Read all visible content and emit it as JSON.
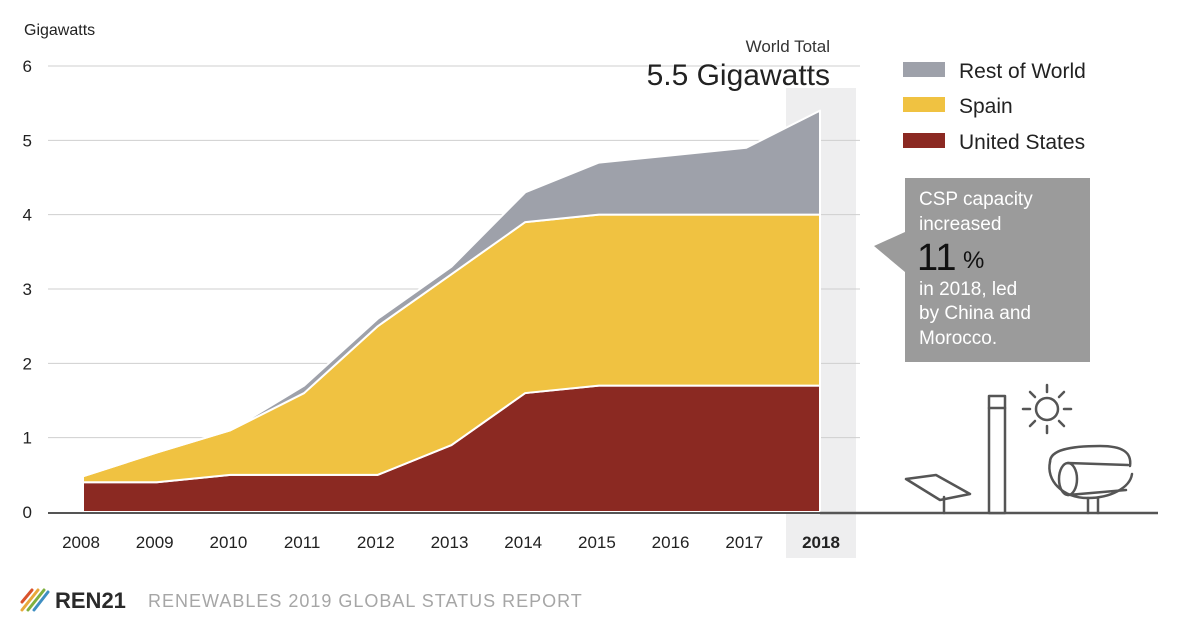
{
  "chart_data": {
    "type": "area",
    "stacked": true,
    "ylabel": "Gigawatts",
    "ylim": [
      0,
      6
    ],
    "yticks": [
      0,
      1,
      2,
      3,
      4,
      5,
      6
    ],
    "categories": [
      "2008",
      "2009",
      "2010",
      "2011",
      "2012",
      "2013",
      "2014",
      "2015",
      "2016",
      "2017",
      "2018"
    ],
    "highlight_category": "2018",
    "series": [
      {
        "name": "United States",
        "color": "#8b2922",
        "values": [
          0.4,
          0.4,
          0.5,
          0.5,
          0.5,
          0.9,
          1.6,
          1.7,
          1.7,
          1.7,
          1.7
        ]
      },
      {
        "name": "Spain",
        "color": "#f0c241",
        "values": [
          0.08,
          0.4,
          0.6,
          1.1,
          2.0,
          2.3,
          2.3,
          2.3,
          2.3,
          2.3,
          2.3
        ]
      },
      {
        "name": "Rest of World",
        "color": "#9ea1aa",
        "values": [
          0.0,
          0.0,
          0.0,
          0.1,
          0.1,
          0.1,
          0.4,
          0.7,
          0.8,
          0.9,
          1.4
        ]
      }
    ],
    "legend": [
      "Rest of World",
      "Spain",
      "United States"
    ],
    "legend_position": "top-right",
    "annotation": {
      "label": "World Total",
      "value": "5.5 Gigawatts"
    },
    "callout": {
      "line1": "CSP capacity",
      "line2": "increased",
      "big": "11",
      "pct": "%",
      "line3": "in 2018, led",
      "line4": "by China and",
      "line5": "Morocco."
    }
  },
  "footer": {
    "brand": "REN21",
    "report": "RENEWABLES 2019 GLOBAL STATUS REPORT"
  },
  "colors": {
    "highlight_band": "#eeeeef",
    "grid": "#cfcfcf",
    "callout_box": "#9b9b9b",
    "baseline": "#555555"
  }
}
